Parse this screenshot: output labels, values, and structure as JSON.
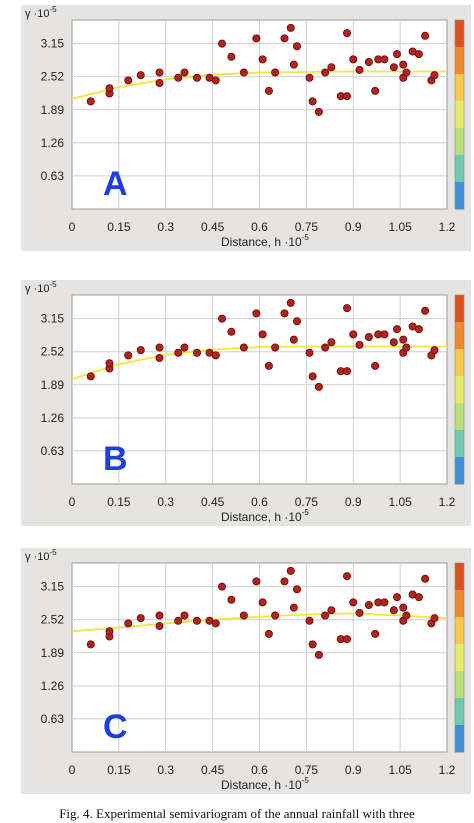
{
  "chart_data": [
    {
      "type": "scatter",
      "panel_label": "A",
      "ylabel": "γ ·10",
      "ylabel_exp": "-5",
      "xlabel": "Distance, h ·10",
      "xlabel_exp": "-5",
      "xlim": [
        0,
        1.2
      ],
      "ylim": [
        0,
        3.6
      ],
      "xticks": [
        "0",
        "0.15",
        "0.3",
        "0.45",
        "0.6",
        "0.75",
        "0.9",
        "1.05",
        "1.2"
      ],
      "yticks": [
        "0.63",
        "1.26",
        "1.89",
        "2.52",
        "3.15"
      ],
      "grid": true,
      "points": [
        [
          0.06,
          2.05
        ],
        [
          0.12,
          2.2
        ],
        [
          0.12,
          2.3
        ],
        [
          0.18,
          2.45
        ],
        [
          0.22,
          2.55
        ],
        [
          0.28,
          2.4
        ],
        [
          0.28,
          2.6
        ],
        [
          0.34,
          2.5
        ],
        [
          0.36,
          2.6
        ],
        [
          0.4,
          2.5
        ],
        [
          0.44,
          2.5
        ],
        [
          0.46,
          2.45
        ],
        [
          0.48,
          3.15
        ],
        [
          0.51,
          2.9
        ],
        [
          0.55,
          2.6
        ],
        [
          0.59,
          3.25
        ],
        [
          0.61,
          2.85
        ],
        [
          0.63,
          2.25
        ],
        [
          0.65,
          2.6
        ],
        [
          0.68,
          3.25
        ],
        [
          0.7,
          3.45
        ],
        [
          0.71,
          2.75
        ],
        [
          0.72,
          3.1
        ],
        [
          0.76,
          2.5
        ],
        [
          0.77,
          2.05
        ],
        [
          0.79,
          1.85
        ],
        [
          0.81,
          2.6
        ],
        [
          0.83,
          2.7
        ],
        [
          0.86,
          2.15
        ],
        [
          0.88,
          2.15
        ],
        [
          0.88,
          3.35
        ],
        [
          0.9,
          2.85
        ],
        [
          0.92,
          2.65
        ],
        [
          0.95,
          2.8
        ],
        [
          0.97,
          2.25
        ],
        [
          0.98,
          2.85
        ],
        [
          1.0,
          2.85
        ],
        [
          1.03,
          2.7
        ],
        [
          1.04,
          2.95
        ],
        [
          1.06,
          2.75
        ],
        [
          1.06,
          2.5
        ],
        [
          1.07,
          2.6
        ],
        [
          1.09,
          3.0
        ],
        [
          1.11,
          2.95
        ],
        [
          1.13,
          3.3
        ],
        [
          1.15,
          2.45
        ],
        [
          1.16,
          2.55
        ]
      ],
      "trend": [
        [
          0,
          2.1
        ],
        [
          0.15,
          2.32
        ],
        [
          0.3,
          2.47
        ],
        [
          0.45,
          2.56
        ],
        [
          0.6,
          2.6
        ],
        [
          0.75,
          2.61
        ],
        [
          0.9,
          2.62
        ],
        [
          1.05,
          2.62
        ],
        [
          1.2,
          2.62
        ]
      ]
    },
    {
      "type": "scatter",
      "panel_label": "B",
      "ylabel": "γ ·10",
      "ylabel_exp": "-5",
      "xlabel": "Distance, h ·10",
      "xlabel_exp": "-5",
      "xlim": [
        0,
        1.2
      ],
      "ylim": [
        0,
        3.6
      ],
      "xticks": [
        "0",
        "0.15",
        "0.3",
        "0.45",
        "0.6",
        "0.75",
        "0.9",
        "1.05",
        "1.2"
      ],
      "yticks": [
        "0.63",
        "1.26",
        "1.89",
        "2.52",
        "3.15"
      ],
      "grid": true,
      "points": [
        [
          0.06,
          2.05
        ],
        [
          0.12,
          2.2
        ],
        [
          0.12,
          2.3
        ],
        [
          0.18,
          2.45
        ],
        [
          0.22,
          2.55
        ],
        [
          0.28,
          2.4
        ],
        [
          0.28,
          2.6
        ],
        [
          0.34,
          2.5
        ],
        [
          0.36,
          2.6
        ],
        [
          0.4,
          2.5
        ],
        [
          0.44,
          2.5
        ],
        [
          0.46,
          2.45
        ],
        [
          0.48,
          3.15
        ],
        [
          0.51,
          2.9
        ],
        [
          0.55,
          2.6
        ],
        [
          0.59,
          3.25
        ],
        [
          0.61,
          2.85
        ],
        [
          0.63,
          2.25
        ],
        [
          0.65,
          2.6
        ],
        [
          0.68,
          3.25
        ],
        [
          0.7,
          3.45
        ],
        [
          0.71,
          2.75
        ],
        [
          0.72,
          3.1
        ],
        [
          0.76,
          2.5
        ],
        [
          0.77,
          2.05
        ],
        [
          0.79,
          1.85
        ],
        [
          0.81,
          2.6
        ],
        [
          0.83,
          2.7
        ],
        [
          0.86,
          2.15
        ],
        [
          0.88,
          2.15
        ],
        [
          0.88,
          3.35
        ],
        [
          0.9,
          2.85
        ],
        [
          0.92,
          2.65
        ],
        [
          0.95,
          2.8
        ],
        [
          0.97,
          2.25
        ],
        [
          0.98,
          2.85
        ],
        [
          1.0,
          2.85
        ],
        [
          1.03,
          2.7
        ],
        [
          1.04,
          2.95
        ],
        [
          1.06,
          2.75
        ],
        [
          1.06,
          2.5
        ],
        [
          1.07,
          2.6
        ],
        [
          1.09,
          3.0
        ],
        [
          1.11,
          2.95
        ],
        [
          1.13,
          3.3
        ],
        [
          1.15,
          2.45
        ],
        [
          1.16,
          2.55
        ]
      ],
      "trend": [
        [
          0,
          2.0
        ],
        [
          0.15,
          2.28
        ],
        [
          0.3,
          2.46
        ],
        [
          0.45,
          2.56
        ],
        [
          0.6,
          2.61
        ],
        [
          0.75,
          2.62
        ],
        [
          0.9,
          2.62
        ],
        [
          1.05,
          2.62
        ],
        [
          1.2,
          2.62
        ]
      ]
    },
    {
      "type": "scatter",
      "panel_label": "C",
      "ylabel": "γ ·10",
      "ylabel_exp": "-5",
      "xlabel": "Distance, h ·10",
      "xlabel_exp": "-5",
      "xlim": [
        0,
        1.2
      ],
      "ylim": [
        0,
        3.6
      ],
      "xticks": [
        "0",
        "0.15",
        "0.3",
        "0.45",
        "0.6",
        "0.75",
        "0.9",
        "1.05",
        "1.2"
      ],
      "yticks": [
        "0.63",
        "1.26",
        "1.89",
        "2.52",
        "3.15"
      ],
      "grid": true,
      "points": [
        [
          0.06,
          2.05
        ],
        [
          0.12,
          2.2
        ],
        [
          0.12,
          2.3
        ],
        [
          0.18,
          2.45
        ],
        [
          0.22,
          2.55
        ],
        [
          0.28,
          2.4
        ],
        [
          0.28,
          2.6
        ],
        [
          0.34,
          2.5
        ],
        [
          0.36,
          2.6
        ],
        [
          0.4,
          2.5
        ],
        [
          0.44,
          2.5
        ],
        [
          0.46,
          2.45
        ],
        [
          0.48,
          3.15
        ],
        [
          0.51,
          2.9
        ],
        [
          0.55,
          2.6
        ],
        [
          0.59,
          3.25
        ],
        [
          0.61,
          2.85
        ],
        [
          0.63,
          2.25
        ],
        [
          0.65,
          2.6
        ],
        [
          0.68,
          3.25
        ],
        [
          0.7,
          3.45
        ],
        [
          0.71,
          2.75
        ],
        [
          0.72,
          3.1
        ],
        [
          0.76,
          2.5
        ],
        [
          0.77,
          2.05
        ],
        [
          0.79,
          1.85
        ],
        [
          0.81,
          2.6
        ],
        [
          0.83,
          2.7
        ],
        [
          0.86,
          2.15
        ],
        [
          0.88,
          2.15
        ],
        [
          0.88,
          3.35
        ],
        [
          0.9,
          2.85
        ],
        [
          0.92,
          2.65
        ],
        [
          0.95,
          2.8
        ],
        [
          0.97,
          2.25
        ],
        [
          0.98,
          2.85
        ],
        [
          1.0,
          2.85
        ],
        [
          1.03,
          2.7
        ],
        [
          1.04,
          2.95
        ],
        [
          1.06,
          2.75
        ],
        [
          1.06,
          2.5
        ],
        [
          1.07,
          2.6
        ],
        [
          1.09,
          3.0
        ],
        [
          1.11,
          2.95
        ],
        [
          1.13,
          3.3
        ],
        [
          1.15,
          2.45
        ],
        [
          1.16,
          2.55
        ]
      ],
      "trend": [
        [
          0,
          2.3
        ],
        [
          0.15,
          2.37
        ],
        [
          0.3,
          2.45
        ],
        [
          0.45,
          2.52
        ],
        [
          0.6,
          2.58
        ],
        [
          0.75,
          2.62
        ],
        [
          0.9,
          2.64
        ],
        [
          1.05,
          2.6
        ],
        [
          1.2,
          2.55
        ]
      ]
    }
  ],
  "colors": {
    "plot_bg": "#ffffff",
    "panel_bg": "#e6e4e0",
    "grid": "#cfcfcf",
    "point_fill": "#b3231d",
    "point_stroke": "#5a0f0c",
    "trend": "#f2e63a",
    "panel_label": "#1d3fe0",
    "colorbar": [
      "#e0501f",
      "#f08a2a",
      "#f6c94a",
      "#e8ec6a",
      "#b8e07a",
      "#6fc9b0",
      "#3d8fd8"
    ]
  },
  "caption": "Fig. 4.  Experimental semivariogram of the annual rainfall with three"
}
